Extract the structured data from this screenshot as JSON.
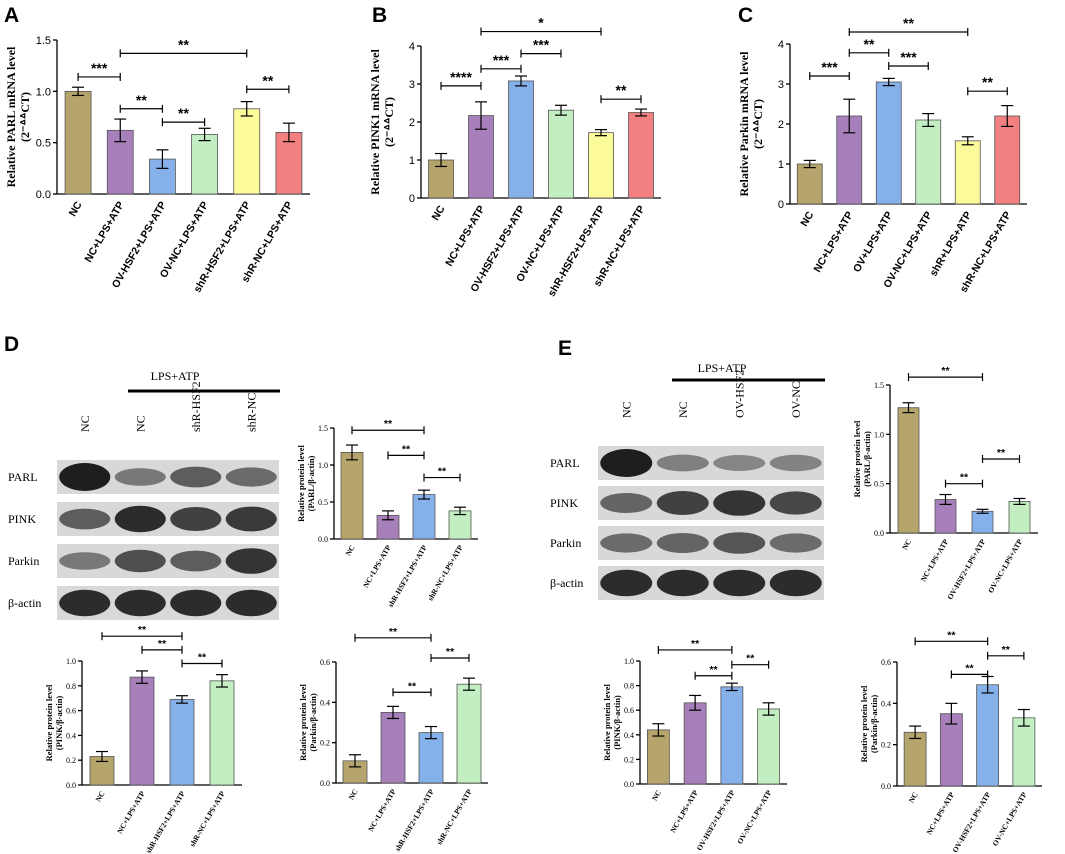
{
  "colors": {
    "NC": "#b5a46c",
    "group2": "#a77fbb",
    "group3": "#86b0ea",
    "group4": "#c2eec2",
    "group5": "#fbfb9a",
    "group6": "#f28080",
    "blot_band": "#1e1e1e",
    "blot_bg": "#d8d8d8"
  },
  "panels": {
    "A": "A",
    "B": "B",
    "C": "C",
    "D": "D",
    "E": "E"
  },
  "blots": {
    "D": {
      "treatment": "LPS+ATP",
      "lanes": [
        "NC",
        "NC",
        "shR-HSF2",
        "shR-NC"
      ],
      "rows": [
        "PARL",
        "PINK",
        "Parkin",
        "β-actin"
      ],
      "intensity": [
        [
          1.0,
          0.35,
          0.55,
          0.45
        ],
        [
          0.55,
          0.9,
          0.75,
          0.8
        ],
        [
          0.35,
          0.65,
          0.55,
          0.85
        ],
        [
          0.9,
          0.9,
          0.9,
          0.9
        ]
      ]
    },
    "E": {
      "treatment": "LPS+ATP",
      "lanes": [
        "NC",
        "NC",
        "OV-HSF2",
        "OV-NC"
      ],
      "rows": [
        "PARL",
        "PINK",
        "Parkin",
        "β-actin"
      ],
      "intensity": [
        [
          1.0,
          0.3,
          0.25,
          0.28
        ],
        [
          0.5,
          0.75,
          0.85,
          0.7
        ],
        [
          0.45,
          0.5,
          0.6,
          0.45
        ],
        [
          0.9,
          0.9,
          0.9,
          0.9
        ]
      ]
    }
  },
  "chart_data": [
    {
      "id": "A",
      "type": "bar",
      "ylabel": "Relative PARL mRNA level",
      "ylabel2": "(2⁻ᐞᐞCT)",
      "ylim": [
        0,
        1.5
      ],
      "yticks": [
        0.0,
        0.5,
        1.0,
        1.5
      ],
      "categories": [
        "NC",
        "NC+LPS+ATP",
        "OV-HSF2+LPS+ATP",
        "OV-NC+LPS+ATP",
        "shR-HSF2+LPS+ATP",
        "shR-NC+LPS+ATP"
      ],
      "values": [
        1.0,
        0.62,
        0.34,
        0.58,
        0.83,
        0.6
      ],
      "errors": [
        0.04,
        0.11,
        0.09,
        0.06,
        0.07,
        0.09
      ],
      "colors": [
        "NC",
        "group2",
        "group3",
        "group4",
        "group5",
        "group6"
      ],
      "sig": [
        {
          "from": 0,
          "to": 1,
          "level": 1.14,
          "label": "***"
        },
        {
          "from": 1,
          "to": 4,
          "level": 1.37,
          "label": "**"
        },
        {
          "from": 1,
          "to": 2,
          "level": 0.83,
          "label": "**"
        },
        {
          "from": 2,
          "to": 3,
          "level": 0.7,
          "label": "**"
        },
        {
          "from": 4,
          "to": 5,
          "level": 1.02,
          "label": "**"
        }
      ]
    },
    {
      "id": "B",
      "type": "bar",
      "ylabel": "Relative PINK1 mRNA level",
      "ylabel2": "(2⁻ᐞᐞCT)",
      "ylim": [
        0,
        4
      ],
      "yticks": [
        0,
        1,
        2,
        3,
        4
      ],
      "categories": [
        "NC",
        "NC+LPS+ATP",
        "OV-HSF2+LPS+ATP",
        "OV-NC+LPS+ATP",
        "shR-HSF2+LPS+ATP",
        "shR-NC+LPS+ATP"
      ],
      "values": [
        1.0,
        2.17,
        3.08,
        2.31,
        1.72,
        2.25
      ],
      "errors": [
        0.17,
        0.36,
        0.13,
        0.13,
        0.08,
        0.09
      ],
      "colors": [
        "NC",
        "group2",
        "group3",
        "group4",
        "group5",
        "group6"
      ],
      "sig": [
        {
          "from": 0,
          "to": 1,
          "level": 2.95,
          "label": "****"
        },
        {
          "from": 1,
          "to": 2,
          "level": 3.4,
          "label": "***"
        },
        {
          "from": 2,
          "to": 3,
          "level": 3.8,
          "label": "***"
        },
        {
          "from": 1,
          "to": 4,
          "level": 4.38,
          "label": "*"
        },
        {
          "from": 4,
          "to": 5,
          "level": 2.6,
          "label": "**"
        }
      ]
    },
    {
      "id": "C",
      "type": "bar",
      "ylabel": "Relative Parkin mRNA level",
      "ylabel2": "(2⁻ᐞᐞCT)",
      "ylim": [
        0,
        4
      ],
      "yticks": [
        0,
        1,
        2,
        3,
        4
      ],
      "categories": [
        "NC",
        "NC+LPS+ATP",
        "OV+LPS+ATP",
        "OV-NC+LPS+ATP",
        "shR+LPS+ATP",
        "shR-NC+LPS+ATP"
      ],
      "values": [
        1.0,
        2.2,
        3.05,
        2.1,
        1.58,
        2.2
      ],
      "errors": [
        0.09,
        0.42,
        0.09,
        0.16,
        0.1,
        0.26
      ],
      "colors": [
        "NC",
        "group2",
        "group3",
        "group4",
        "group5",
        "group6"
      ],
      "sig": [
        {
          "from": 0,
          "to": 1,
          "level": 3.2,
          "label": "***"
        },
        {
          "from": 1,
          "to": 2,
          "level": 3.78,
          "label": "**"
        },
        {
          "from": 2,
          "to": 3,
          "level": 3.45,
          "label": "***"
        },
        {
          "from": 1,
          "to": 4,
          "level": 4.3,
          "label": "**"
        },
        {
          "from": 4,
          "to": 5,
          "level": 2.82,
          "label": "**"
        }
      ]
    },
    {
      "id": "D1",
      "type": "bar",
      "small": true,
      "ylabel": "Relative protein level",
      "ylabel2": "(PARL/β-actin)",
      "ylim": [
        0,
        1.5
      ],
      "yticks": [
        0.0,
        0.5,
        1.0,
        1.5
      ],
      "categories": [
        "NC",
        "NC+LPS+ATP",
        "shR-HSF2+LPS+ATP",
        "shR-NC+LPS+ATP"
      ],
      "values": [
        1.17,
        0.32,
        0.6,
        0.38
      ],
      "errors": [
        0.1,
        0.06,
        0.06,
        0.05
      ],
      "colors": [
        "NC",
        "group2",
        "group3",
        "group4"
      ],
      "sig": [
        {
          "from": 0,
          "to": 2,
          "level": 1.47,
          "label": "**"
        },
        {
          "from": 1,
          "to": 2,
          "level": 1.13,
          "label": "**"
        },
        {
          "from": 2,
          "to": 3,
          "level": 0.83,
          "label": "**"
        }
      ]
    },
    {
      "id": "D2",
      "type": "bar",
      "small": true,
      "ylabel": "Relative protein level",
      "ylabel2": "(PINK/β-actin)",
      "ylim": [
        0,
        1.0
      ],
      "yticks": [
        0.0,
        0.2,
        0.4,
        0.6,
        0.8,
        1.0
      ],
      "categories": [
        "NC",
        "NC+LPS+ATP",
        "shR-HSF2+LPS+ATP",
        "shR-NC+LPS+ATP"
      ],
      "values": [
        0.23,
        0.87,
        0.69,
        0.84
      ],
      "errors": [
        0.04,
        0.05,
        0.03,
        0.05
      ],
      "colors": [
        "NC",
        "group2",
        "group3",
        "group4"
      ],
      "sig": [
        {
          "from": 0,
          "to": 2,
          "level": 1.2,
          "label": "**"
        },
        {
          "from": 1,
          "to": 2,
          "level": 1.09,
          "label": "**"
        },
        {
          "from": 2,
          "to": 3,
          "level": 0.98,
          "label": "**"
        }
      ]
    },
    {
      "id": "D3",
      "type": "bar",
      "small": true,
      "ylabel": "Relative protein level",
      "ylabel2": "(Parkin/β-actin)",
      "ylim": [
        0,
        0.6
      ],
      "yticks": [
        0.0,
        0.2,
        0.4,
        0.6
      ],
      "categories": [
        "NC",
        "NC+LPS+ATP",
        "shR-HSF2+LPS+ATP",
        "shR-NC+LPS+ATP"
      ],
      "values": [
        0.11,
        0.35,
        0.25,
        0.49
      ],
      "errors": [
        0.03,
        0.03,
        0.03,
        0.03
      ],
      "colors": [
        "NC",
        "group2",
        "group3",
        "group4"
      ],
      "sig": [
        {
          "from": 0,
          "to": 2,
          "level": 0.72,
          "label": "**"
        },
        {
          "from": 1,
          "to": 2,
          "level": 0.45,
          "label": "**"
        },
        {
          "from": 2,
          "to": 3,
          "level": 0.62,
          "label": "**"
        }
      ]
    },
    {
      "id": "E1",
      "type": "bar",
      "small": true,
      "ylabel": "Relative protein level",
      "ylabel2": "(PARL/β-actin)",
      "ylim": [
        0,
        1.5
      ],
      "yticks": [
        0.0,
        0.5,
        1.0,
        1.5
      ],
      "categories": [
        "NC",
        "NC+LPS+ATP",
        "OV-HSF2+LPS+ATP",
        "OV-NC+LPS+ATP"
      ],
      "values": [
        1.27,
        0.34,
        0.22,
        0.32
      ],
      "errors": [
        0.05,
        0.05,
        0.02,
        0.03
      ],
      "colors": [
        "NC",
        "group2",
        "group3",
        "group4"
      ],
      "sig": [
        {
          "from": 0,
          "to": 2,
          "level": 1.58,
          "label": "**"
        },
        {
          "from": 1,
          "to": 2,
          "level": 0.5,
          "label": "**"
        },
        {
          "from": 2,
          "to": 3,
          "level": 0.75,
          "label": "**"
        }
      ]
    },
    {
      "id": "E2",
      "type": "bar",
      "small": true,
      "ylabel": "Relative protein level",
      "ylabel2": "(PINK/β-actin)",
      "ylim": [
        0,
        1.0
      ],
      "yticks": [
        0.0,
        0.2,
        0.4,
        0.6,
        0.8,
        1.0
      ],
      "categories": [
        "NC",
        "NC+LPS+ATP",
        "OV-HSF2+LPS+ATP",
        "OV-NC+LPS+ATP"
      ],
      "values": [
        0.44,
        0.66,
        0.79,
        0.61
      ],
      "errors": [
        0.05,
        0.06,
        0.03,
        0.05
      ],
      "colors": [
        "NC",
        "group2",
        "group3",
        "group4"
      ],
      "sig": [
        {
          "from": 0,
          "to": 2,
          "level": 1.09,
          "label": "**"
        },
        {
          "from": 1,
          "to": 2,
          "level": 0.88,
          "label": "**"
        },
        {
          "from": 2,
          "to": 3,
          "level": 0.97,
          "label": "**"
        }
      ]
    },
    {
      "id": "E3",
      "type": "bar",
      "small": true,
      "ylabel": "Relative protein level",
      "ylabel2": "(Parkin/β-actin)",
      "ylim": [
        0,
        0.6
      ],
      "yticks": [
        0.0,
        0.2,
        0.4,
        0.6
      ],
      "categories": [
        "NC",
        "NC+LPS+ATP",
        "OV-HSF2+LPS+ATP",
        "OV-NC+LPS+ATP"
      ],
      "values": [
        0.26,
        0.35,
        0.49,
        0.33
      ],
      "errors": [
        0.03,
        0.05,
        0.04,
        0.04
      ],
      "colors": [
        "NC",
        "group2",
        "group3",
        "group4"
      ],
      "sig": [
        {
          "from": 0,
          "to": 2,
          "level": 0.7,
          "label": "**"
        },
        {
          "from": 1,
          "to": 2,
          "level": 0.54,
          "label": "**"
        },
        {
          "from": 2,
          "to": 3,
          "level": 0.63,
          "label": "**"
        }
      ]
    }
  ]
}
